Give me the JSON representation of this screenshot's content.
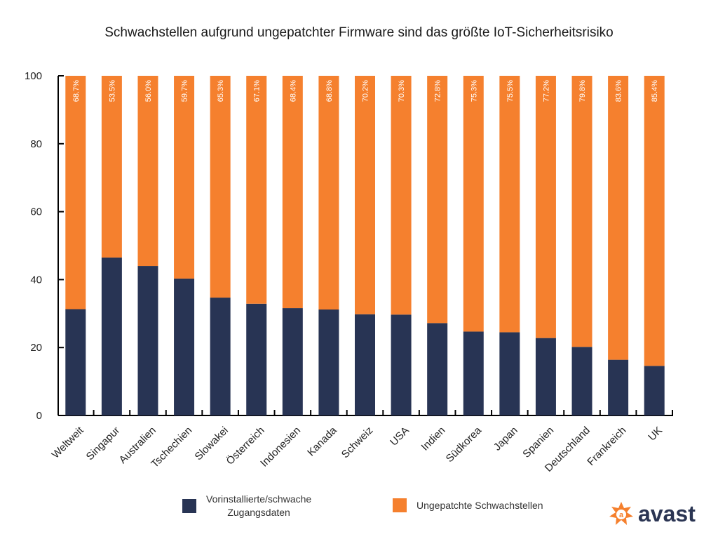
{
  "chart_data": {
    "type": "bar",
    "stacked": true,
    "title": "Schwachstellen aufgrund ungepatchter Firmware sind das größte IoT-Sicherheitsrisiko",
    "categories": [
      "Weltweit",
      "Singapur",
      "Australien",
      "Tschechien",
      "Slowakei",
      "Österreich",
      "Indonesien",
      "Kanada",
      "Schweiz",
      "USA",
      "Indien",
      "Südkorea",
      "Japan",
      "Spanien",
      "Deutschland",
      "Frankreich",
      "UK"
    ],
    "series": [
      {
        "name": "Vorinstallierte/schwache Zugangsdaten",
        "color": "#283454",
        "values": [
          31.3,
          46.5,
          44.0,
          40.3,
          34.7,
          32.9,
          31.6,
          31.2,
          29.8,
          29.7,
          27.2,
          24.7,
          24.5,
          22.8,
          20.2,
          16.4,
          14.6
        ]
      },
      {
        "name": "Ungepatchte Schwachstellen",
        "color": "#f5802e",
        "values": [
          68.7,
          53.5,
          56.0,
          59.7,
          65.3,
          67.1,
          68.4,
          68.8,
          70.2,
          70.3,
          72.8,
          75.3,
          75.5,
          77.2,
          79.8,
          83.6,
          85.4
        ],
        "labels": [
          "68.7%",
          "53.5%",
          "56.0%",
          "59.7%",
          "65.3%",
          "67.1%",
          "68.4%",
          "68.8%",
          "70.2%",
          "70.3%",
          "72.8%",
          "75.3%",
          "75.5%",
          "77.2%",
          "79.8%",
          "83.6%",
          "85.4%"
        ]
      }
    ],
    "ylim": [
      0,
      100
    ],
    "yticks": [
      "0",
      "20",
      "40",
      "60",
      "80",
      "100"
    ],
    "grid": false,
    "legend_position": "bottom"
  },
  "legend": {
    "series1_line1": "Vorinstallierte/schwache",
    "series1_line2": "Zugangsdaten",
    "series2": "Ungepatchte Schwachstellen"
  },
  "logo": {
    "text": "avast",
    "color": "#f5802e"
  }
}
